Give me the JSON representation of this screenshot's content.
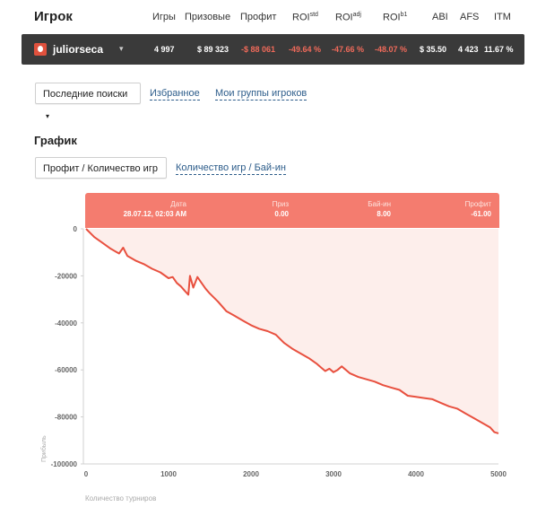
{
  "header": {
    "title": "Игрок",
    "columns": [
      {
        "label": "Игры",
        "sup": ""
      },
      {
        "label": "Призовые",
        "sup": ""
      },
      {
        "label": "Профит",
        "sup": ""
      },
      {
        "label": "ROI",
        "sup": "std"
      },
      {
        "label": "ROI",
        "sup": "adj"
      },
      {
        "label": "ROI",
        "sup": "b1"
      },
      {
        "label": "ABI",
        "sup": ""
      },
      {
        "label": "AFS",
        "sup": ""
      },
      {
        "label": "ITM",
        "sup": ""
      }
    ]
  },
  "player": {
    "name": "juliorseca",
    "caret": "▾",
    "games": "4 997",
    "prizes": "$ 89 323",
    "profit": "-$ 88 061",
    "roi_std": "-49.64 %",
    "roi_adj": "-47.66 %",
    "roi_b1": "-48.07 %",
    "abi": "$ 35.50",
    "afs": "4 423",
    "itm": "11.67 %",
    "negative_color": "#f06a5a"
  },
  "search": {
    "recent_label": "Последние поиски",
    "recent_caret": "▾",
    "favorites_label": "Избранное",
    "groups_label": "Мои группы игроков"
  },
  "graph": {
    "section_title": "График",
    "mode_active_label": "Профит / Количество игр",
    "mode_alt_label": "Количество игр / Бай-ин"
  },
  "tooltip": {
    "date_label": "Дата",
    "date_value": "28.07.12, 02:03 AM",
    "prize_label": "Приз",
    "prize_value": "0.00",
    "buyin_label": "Бай-ин",
    "buyin_value": "8.00",
    "profit_label": "Профит",
    "profit_value": "-61.00",
    "color": "#f47c6f"
  },
  "chart_data": {
    "type": "line",
    "xlabel": "Количество турниров",
    "ylabel": "Прибыль",
    "xlim": [
      0,
      5000
    ],
    "ylim": [
      -100000,
      0
    ],
    "x_ticks": [
      0,
      1000,
      2000,
      3000,
      4000,
      5000
    ],
    "y_ticks": [
      0,
      -20000,
      -40000,
      -60000,
      -80000,
      -100000
    ],
    "line_color": "#e8503f",
    "fill_color": "#fdeeeb",
    "series": [
      {
        "x": [
          0,
          100,
          200,
          300,
          400,
          450,
          500,
          600,
          700,
          800,
          900,
          1000,
          1050,
          1100,
          1150,
          1200,
          1240,
          1260,
          1300,
          1350,
          1400,
          1450,
          1500,
          1600,
          1700,
          1800,
          1900,
          2000,
          2100,
          2200,
          2300,
          2400,
          2500,
          2600,
          2700,
          2800,
          2850,
          2900,
          2950,
          3000,
          3050,
          3100,
          3200,
          3300,
          3400,
          3500,
          3600,
          3700,
          3800,
          3900,
          4000,
          4100,
          4200,
          4300,
          4400,
          4500,
          4600,
          4700,
          4800,
          4900,
          4950,
          5000
        ],
        "y": [
          0,
          -3500,
          -6000,
          -8500,
          -10500,
          -8000,
          -11500,
          -13500,
          -15000,
          -17000,
          -18500,
          -21000,
          -20500,
          -23000,
          -24500,
          -26500,
          -28000,
          -20000,
          -25000,
          -20500,
          -23000,
          -25500,
          -27500,
          -31000,
          -35000,
          -37000,
          -39000,
          -41000,
          -42500,
          -43500,
          -45000,
          -48500,
          -51000,
          -53000,
          -55000,
          -57500,
          -59000,
          -60500,
          -59500,
          -61000,
          -60000,
          -58500,
          -61500,
          -63000,
          -64000,
          -65000,
          -66500,
          -67500,
          -68500,
          -71000,
          -71500,
          -72000,
          -72500,
          -74000,
          -75500,
          -76500,
          -78500,
          -80500,
          -82500,
          -84500,
          -86500,
          -87000
        ]
      }
    ]
  }
}
